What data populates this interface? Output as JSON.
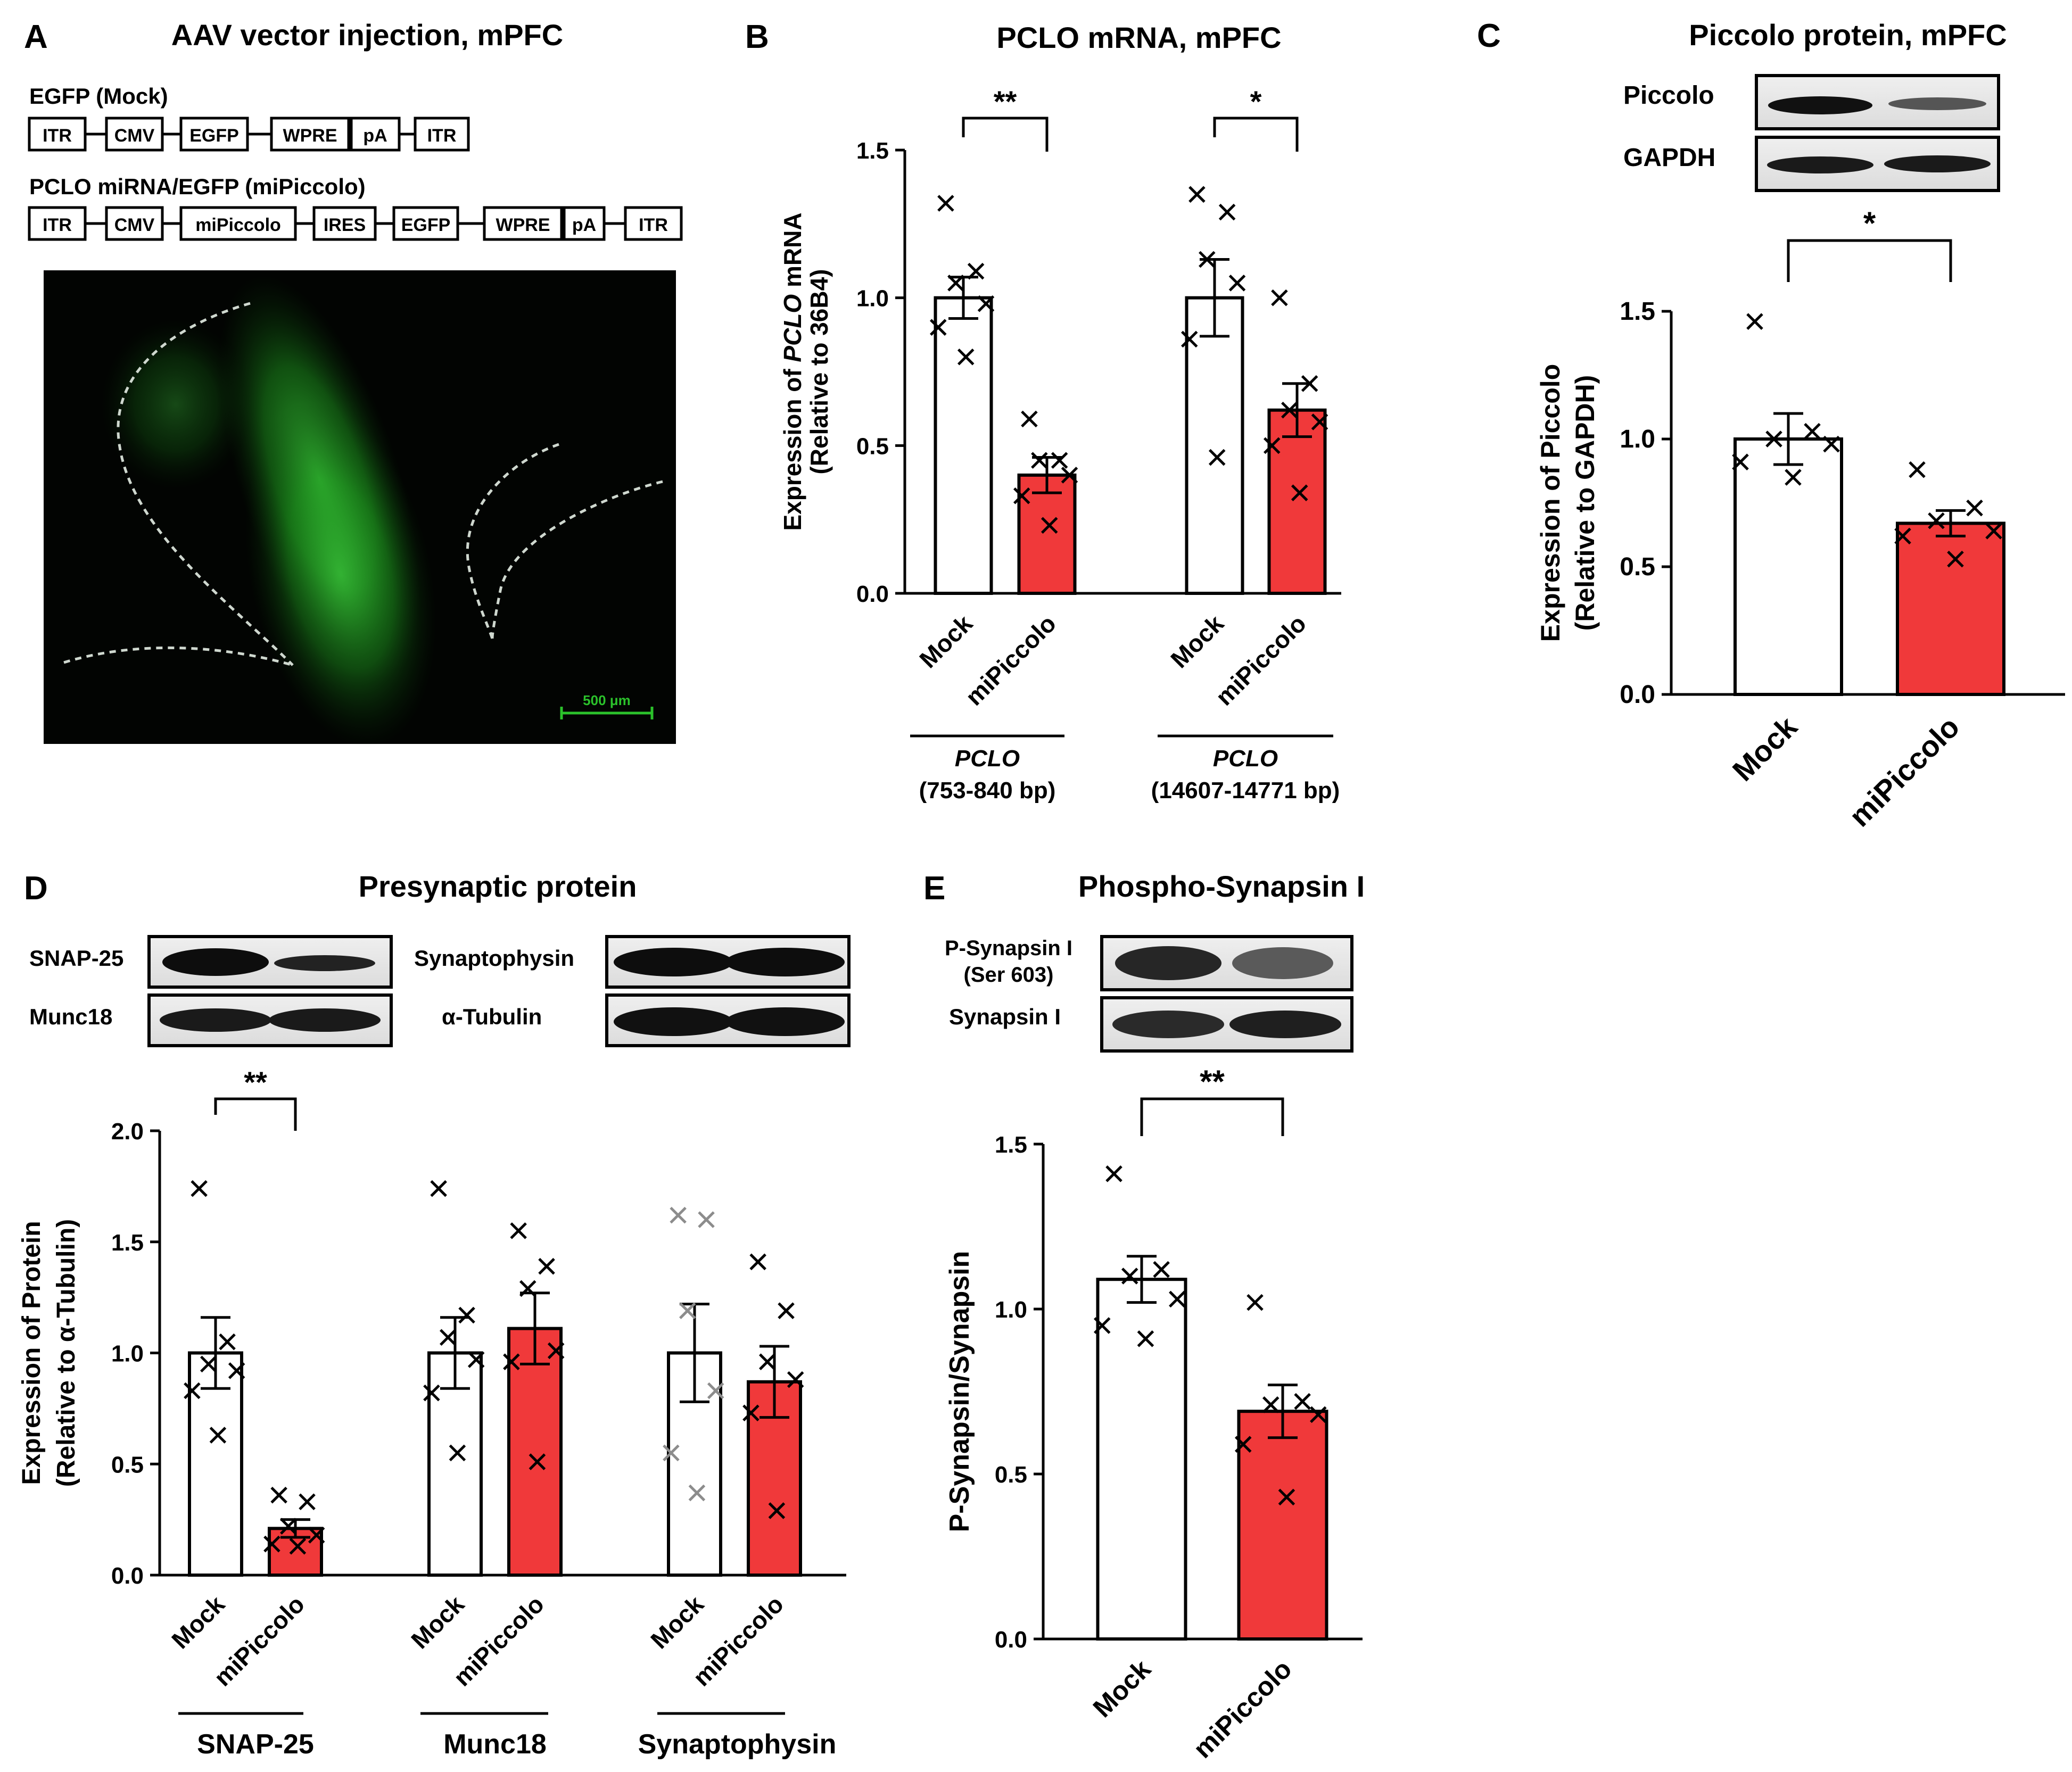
{
  "colors": {
    "mock_fill": "#ffffff",
    "mipiccolo_fill": "#f0393a",
    "gfp_green": "#2bc22b",
    "ink": "#000000",
    "gray_marker": "#8c8c8c"
  },
  "panels": {
    "A": {
      "letter": "A",
      "title": "AAV vector injection, mPFC",
      "construct1_label": "EGFP (Mock)",
      "construct1_boxes": [
        "ITR",
        "CMV",
        "EGFP",
        "WPRE",
        "pA",
        "ITR"
      ],
      "construct2_label": "PCLO miRNA/EGFP  (miPiccolo)",
      "construct2_boxes": [
        "ITR",
        "CMV",
        "miPiccolo",
        "IRES",
        "EGFP",
        "WPRE",
        "pA",
        "ITR"
      ],
      "scale_bar": "500 μm"
    },
    "B": {
      "letter": "B",
      "title": "PCLO mRNA, mPFC",
      "blot_labels": [],
      "sig_labels": [
        "**",
        "*"
      ],
      "group_labels": [
        {
          "name": "PCLO",
          "range": "(753-840 bp)"
        },
        {
          "name": "PCLO",
          "range": "(14607-14771 bp)"
        }
      ]
    },
    "C": {
      "letter": "C",
      "title": "Piccolo protein, mPFC",
      "blot_labels": [
        "Piccolo",
        "GAPDH"
      ],
      "sig_labels": [
        "*"
      ]
    },
    "D": {
      "letter": "D",
      "title": "Presynaptic protein",
      "blot_labels": [
        "SNAP-25",
        "Munc18",
        "Synaptophysin",
        "α-Tubulin"
      ],
      "sig_labels": [
        "**"
      ],
      "group_labels": [
        "SNAP-25",
        "Munc18",
        "Synaptophysin"
      ]
    },
    "E": {
      "letter": "E",
      "title": "Phospho-Synapsin I",
      "blot_labels": [
        "P-Synapsin I",
        "(Ser 603)",
        "Synapsin I"
      ],
      "sig_labels": [
        "**"
      ]
    }
  },
  "chart_data": [
    {
      "panel": "B",
      "type": "bar",
      "title": "PCLO mRNA, mPFC",
      "ylabel": "Expression of PCLO mRNA",
      "ylabel_italic_part": "PCLO",
      "ylabel_line2": "(Relative to 36B4)",
      "ylim": [
        0,
        1.5
      ],
      "yticks": [
        "0.0",
        "0.5",
        "1.0",
        "1.5"
      ],
      "categories": [
        "Mock",
        "miPiccolo",
        "Mock",
        "miPiccolo"
      ],
      "values": [
        1.0,
        0.4,
        1.0,
        0.62
      ],
      "errors": [
        0.07,
        0.06,
        0.13,
        0.09
      ],
      "points": [
        [
          1.32,
          1.09,
          1.05,
          0.98,
          0.9,
          0.8
        ],
        [
          0.59,
          0.45,
          0.45,
          0.4,
          0.33,
          0.23
        ],
        [
          1.35,
          1.29,
          1.13,
          1.05,
          0.86,
          0.46
        ],
        [
          1.0,
          0.71,
          0.62,
          0.58,
          0.5,
          0.34
        ]
      ]
    },
    {
      "panel": "C",
      "type": "bar",
      "title": "Piccolo protein, mPFC",
      "ylabel": "Expression of Piccolo",
      "ylabel_line2": "(Relative to GAPDH)",
      "ylim": [
        0,
        1.5
      ],
      "yticks": [
        "0.0",
        "0.5",
        "1.0",
        "1.5"
      ],
      "categories": [
        "Mock",
        "miPiccolo"
      ],
      "values": [
        1.0,
        0.67
      ],
      "errors": [
        0.1,
        0.05
      ],
      "points": [
        [
          1.46,
          1.03,
          1.0,
          0.98,
          0.91,
          0.85
        ],
        [
          0.88,
          0.73,
          0.68,
          0.64,
          0.62,
          0.53
        ]
      ]
    },
    {
      "panel": "D",
      "type": "bar",
      "title": "Presynaptic protein",
      "ylabel": "Expression of Protein",
      "ylabel_line2": "(Relative to α-Tubulin)",
      "ylim": [
        0,
        2.0
      ],
      "yticks": [
        "0.0",
        "0.5",
        "1.0",
        "1.5",
        "2.0"
      ],
      "categories": [
        "Mock",
        "miPiccolo",
        "Mock",
        "miPiccolo",
        "Mock",
        "miPiccolo"
      ],
      "values": [
        1.0,
        0.21,
        1.0,
        1.11,
        1.0,
        0.87
      ],
      "errors": [
        0.16,
        0.04,
        0.16,
        0.16,
        0.22,
        0.16
      ],
      "points": [
        [
          1.74,
          1.05,
          0.95,
          0.92,
          0.83,
          0.63
        ],
        [
          0.36,
          0.33,
          0.22,
          0.18,
          0.14,
          0.13
        ],
        [
          1.74,
          1.17,
          1.07,
          0.97,
          0.82,
          0.55
        ],
        [
          1.55,
          1.39,
          1.29,
          1.01,
          0.96,
          0.51
        ],
        [
          1.62,
          1.6,
          1.19,
          0.83,
          0.55,
          0.37
        ],
        [
          1.41,
          1.19,
          0.96,
          0.88,
          0.73,
          0.29
        ]
      ],
      "gray_point_groups": [
        4
      ],
      "group_labels": [
        "SNAP-25",
        "Munc18",
        "Synaptophysin"
      ]
    },
    {
      "panel": "E",
      "type": "bar",
      "title": "Phospho-Synapsin I",
      "ylabel": "P-Synapsin/Synapsin",
      "ylim": [
        0,
        1.5
      ],
      "yticks": [
        "0.0",
        "0.5",
        "1.0",
        "1.5"
      ],
      "categories": [
        "Mock",
        "miPiccolo"
      ],
      "values": [
        1.09,
        0.69
      ],
      "errors": [
        0.07,
        0.08
      ],
      "points": [
        [
          1.41,
          1.12,
          1.1,
          1.03,
          0.95,
          0.91
        ],
        [
          1.02,
          0.72,
          0.71,
          0.68,
          0.59,
          0.43
        ]
      ]
    }
  ]
}
